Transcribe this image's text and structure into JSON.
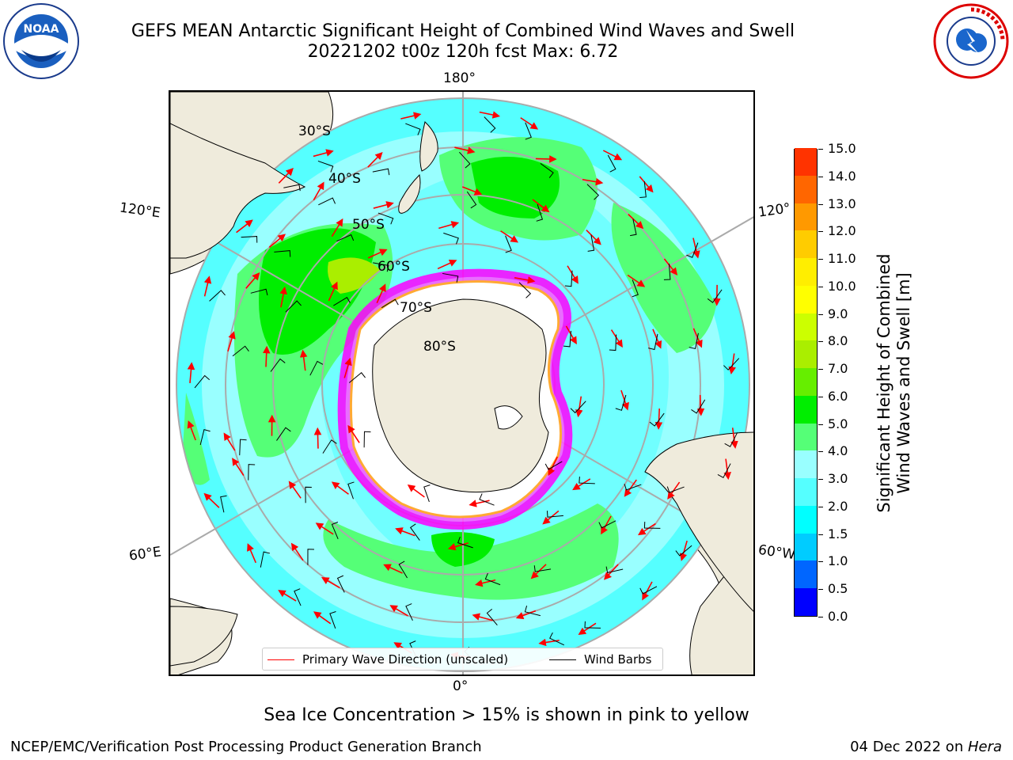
{
  "title": {
    "line1": "GEFS MEAN Antarctic Significant Height of Combined Wind Waves and Swell",
    "line2": "20221202 t00z 120h fcst   Max: 6.72"
  },
  "logos": {
    "left": "NOAA",
    "right": "NATIONAL WEATHER SERVICE"
  },
  "map": {
    "projection": "south-polar-stereographic",
    "lon_labels": {
      "top": "180°",
      "bottom": "0°",
      "left_upper": "120°E",
      "left_lower": "60°E",
      "right_upper": "120°",
      "right_lower": "60°W"
    },
    "lat_labels": [
      "30°S",
      "40°S",
      "50°S",
      "60°S",
      "70°S",
      "80°S"
    ],
    "land_color": "#efebdc",
    "sea_ice_color": "#ff44ff"
  },
  "legend": {
    "primary_wave": "Primary Wave Direction (unscaled)",
    "wind_barbs": "Wind Barbs",
    "wave_color": "#ff0000",
    "barb_color": "#000000"
  },
  "colorbar": {
    "label_line1": "Significant Height of Combined",
    "label_line2": "Wind Waves and Swell [m]",
    "ticks": [
      "0.0",
      "0.5",
      "1.0",
      "1.5",
      "2.0",
      "3.0",
      "4.0",
      "5.0",
      "6.0",
      "7.0",
      "8.0",
      "9.0",
      "10.0",
      "11.0",
      "12.0",
      "13.0",
      "14.0",
      "15.0"
    ],
    "colors": [
      "#0000ff",
      "#0066ff",
      "#00ccff",
      "#00ffff",
      "#55ffff",
      "#99ffff",
      "#55ff77",
      "#00ee00",
      "#66ee00",
      "#aaee00",
      "#ccff00",
      "#ffff00",
      "#ffee00",
      "#ffcc00",
      "#ff9900",
      "#ff6600",
      "#ff3300",
      "#ff0000"
    ]
  },
  "footnote": "Sea Ice Concentration > 15% is shown in pink to yellow",
  "credit_left": "NCEP/EMC/Verification Post Processing Product Generation Branch",
  "credit_date": "04 Dec 2022 on ",
  "credit_host": "Hera"
}
